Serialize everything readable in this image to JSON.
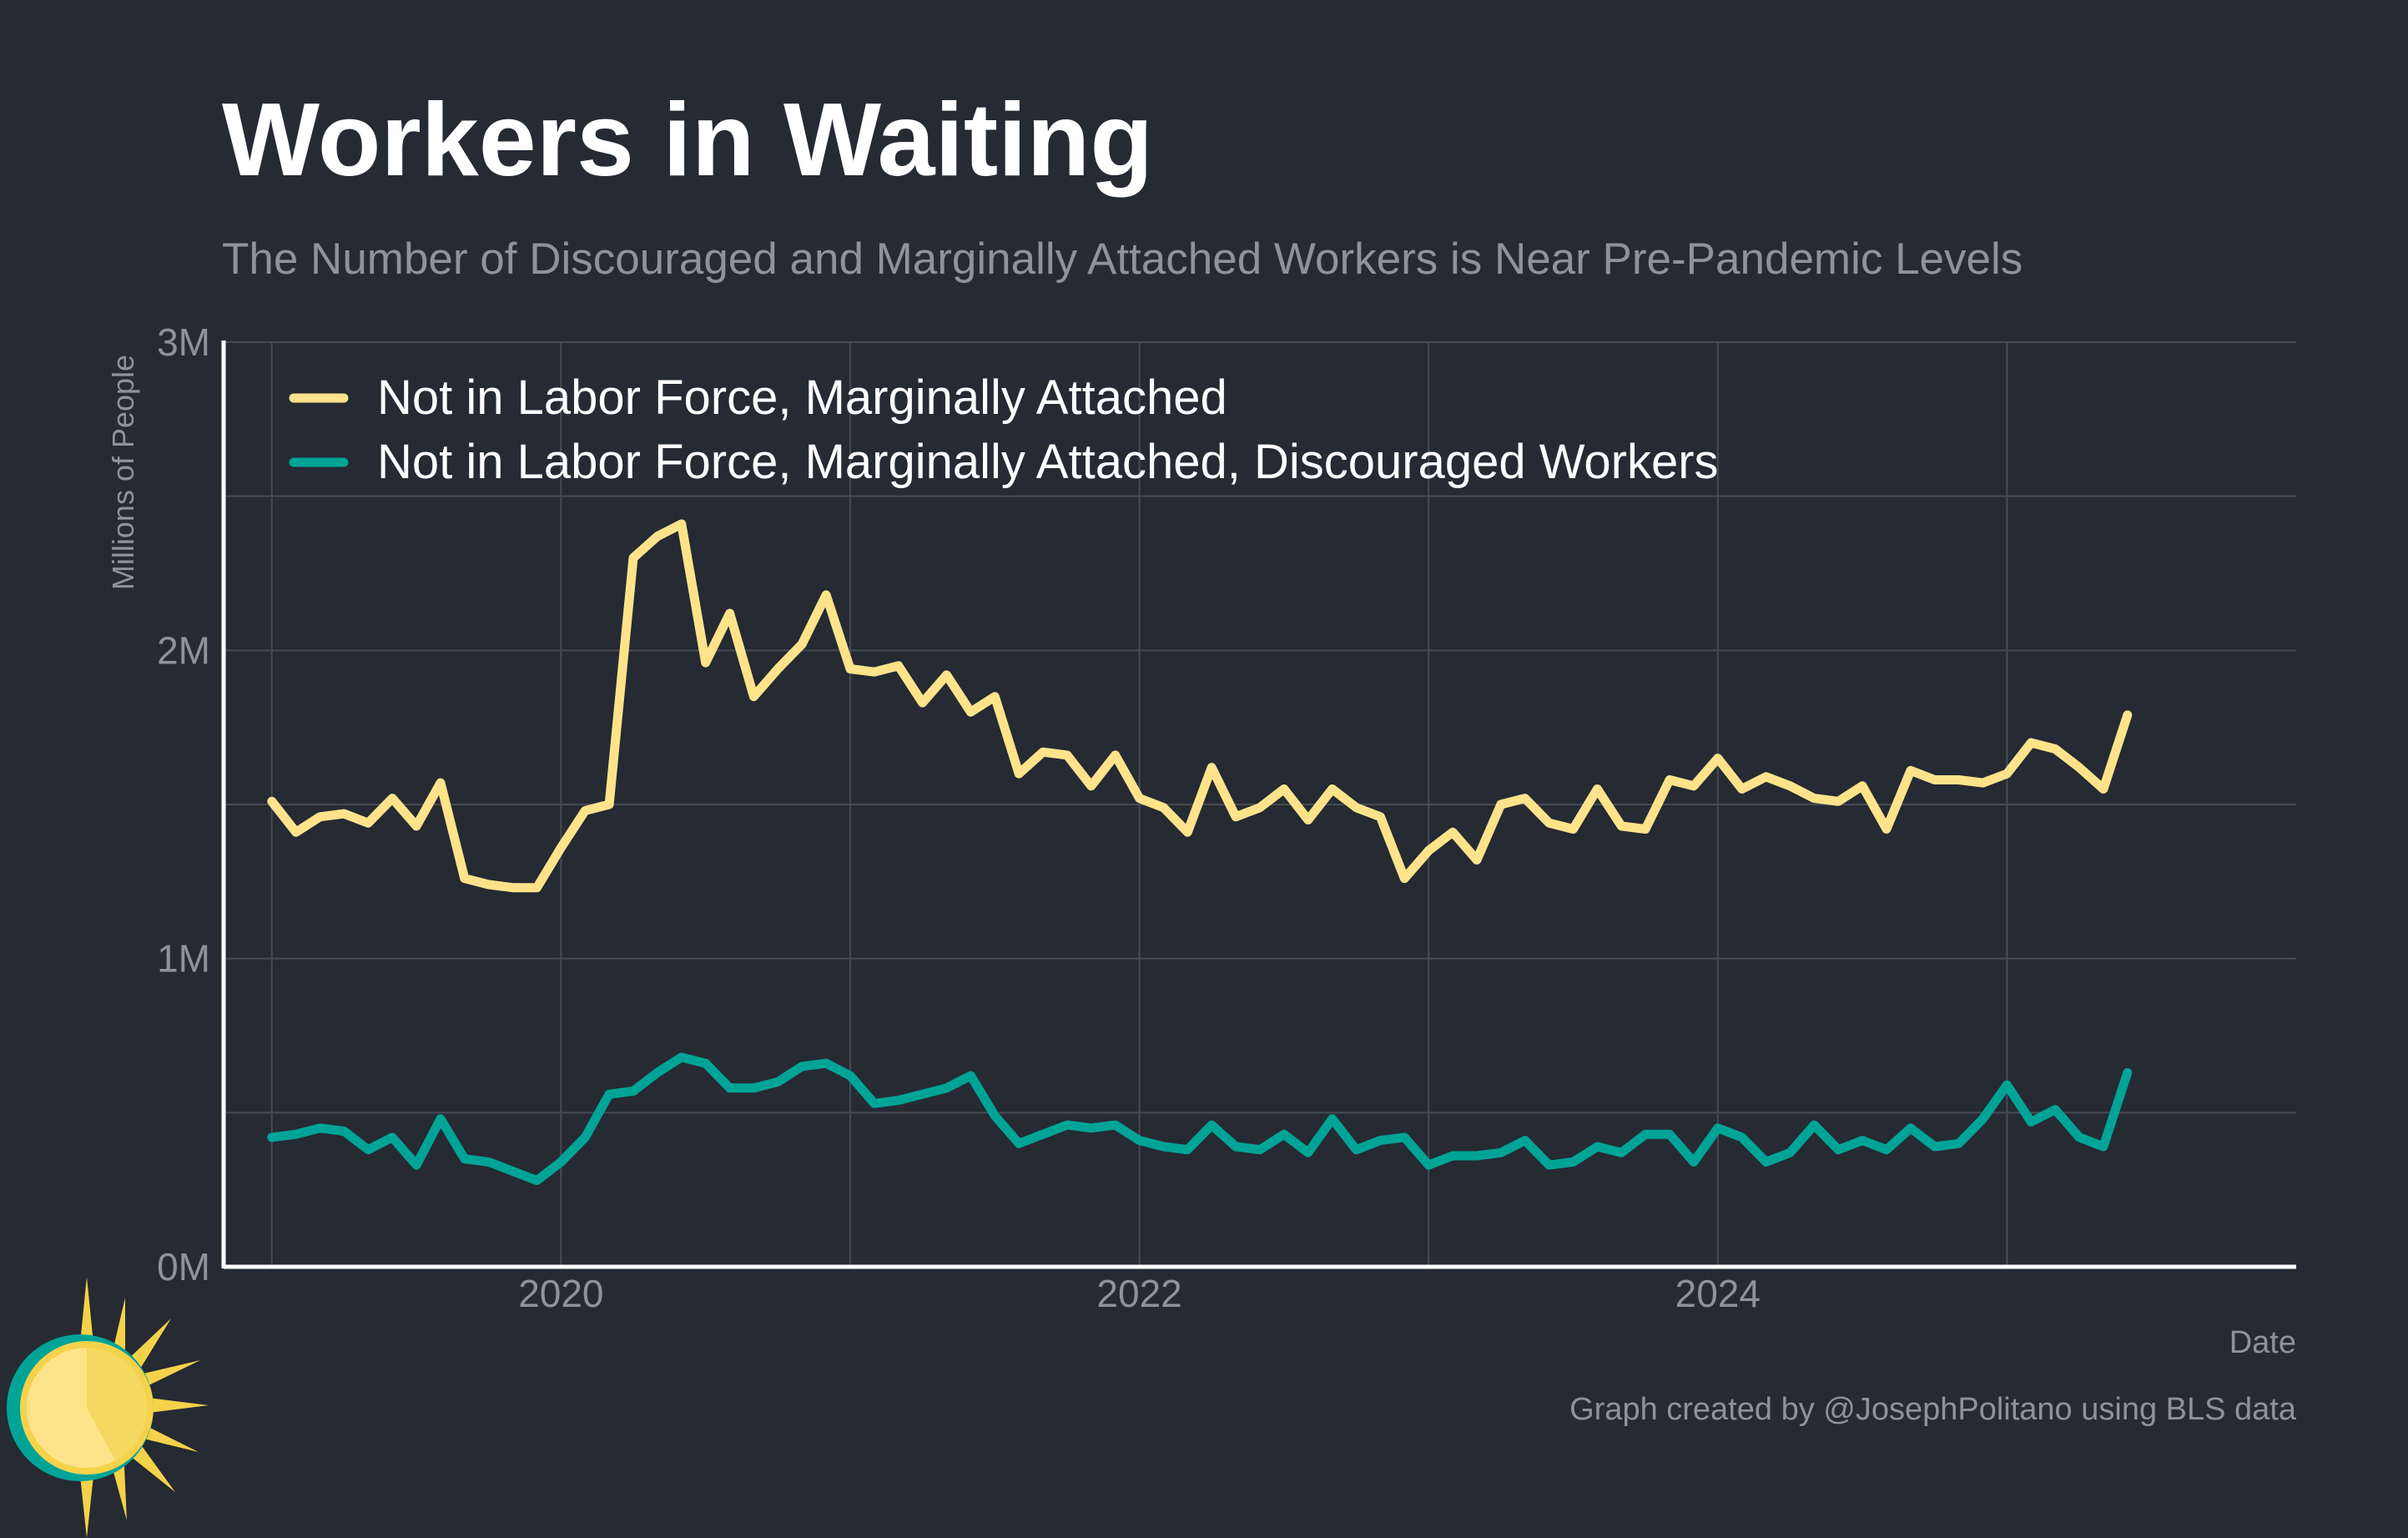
{
  "header": {
    "title": "Workers in Waiting",
    "subtitle": "The Number of Discouraged and Marginally Attached Workers is Near Pre-Pandemic Levels"
  },
  "footer": {
    "credit": "Graph created by @JosephPolitano using BLS data"
  },
  "colors": {
    "background": "#252a33",
    "grid": "#464b54",
    "axis": "#ffffff",
    "muted_text": "#8e939b",
    "yellow": "#ffe38a",
    "teal": "#00a497"
  },
  "logo": {
    "icon": "sun-logo-icon"
  },
  "chart_data": {
    "type": "line",
    "title": "Workers in Waiting",
    "xlabel": "Date",
    "ylabel": "Millions of People",
    "x_start": "2019-01",
    "x_frequency": "monthly",
    "xlim": [
      "2018-11",
      "2026-01"
    ],
    "ylim": [
      0,
      3
    ],
    "y_ticks": [
      {
        "value": 0,
        "label": "0M"
      },
      {
        "value": 1,
        "label": "1M"
      },
      {
        "value": 2,
        "label": "2M"
      },
      {
        "value": 3,
        "label": "3M"
      }
    ],
    "x_ticks": [
      {
        "value": "2020-01",
        "label": "2020"
      },
      {
        "value": "2022-01",
        "label": "2022"
      },
      {
        "value": "2024-01",
        "label": "2024"
      }
    ],
    "grid": true,
    "legend_position": "top-left",
    "series": [
      {
        "name": "Not in Labor Force, Marginally Attached",
        "color": "#ffe38a",
        "values": [
          1.51,
          1.41,
          1.46,
          1.47,
          1.44,
          1.52,
          1.43,
          1.57,
          1.26,
          1.24,
          1.23,
          1.23,
          1.36,
          1.48,
          1.5,
          2.3,
          2.37,
          2.41,
          1.96,
          2.12,
          1.85,
          1.94,
          2.02,
          2.18,
          1.94,
          1.93,
          1.95,
          1.83,
          1.92,
          1.8,
          1.85,
          1.6,
          1.67,
          1.66,
          1.56,
          1.66,
          1.52,
          1.49,
          1.41,
          1.62,
          1.46,
          1.49,
          1.55,
          1.45,
          1.55,
          1.49,
          1.46,
          1.26,
          1.35,
          1.41,
          1.32,
          1.5,
          1.52,
          1.44,
          1.42,
          1.55,
          1.43,
          1.42,
          1.58,
          1.56,
          1.65,
          1.55,
          1.59,
          1.56,
          1.52,
          1.51,
          1.56,
          1.42,
          1.61,
          1.58,
          1.58,
          1.57,
          1.6,
          1.7,
          1.68,
          1.62,
          1.55,
          1.79
        ]
      },
      {
        "name": "Not in Labor Force, Marginally Attached, Discouraged Workers",
        "color": "#00a497",
        "values": [
          0.42,
          0.43,
          0.45,
          0.44,
          0.38,
          0.42,
          0.33,
          0.48,
          0.35,
          0.34,
          0.31,
          0.28,
          0.34,
          0.42,
          0.56,
          0.57,
          0.63,
          0.68,
          0.66,
          0.58,
          0.58,
          0.6,
          0.65,
          0.66,
          0.62,
          0.53,
          0.54,
          0.56,
          0.58,
          0.62,
          0.49,
          0.4,
          0.43,
          0.46,
          0.45,
          0.46,
          0.41,
          0.39,
          0.38,
          0.46,
          0.39,
          0.38,
          0.43,
          0.37,
          0.48,
          0.38,
          0.41,
          0.42,
          0.33,
          0.36,
          0.36,
          0.37,
          0.41,
          0.33,
          0.34,
          0.39,
          0.37,
          0.43,
          0.43,
          0.34,
          0.45,
          0.42,
          0.34,
          0.37,
          0.46,
          0.38,
          0.41,
          0.38,
          0.45,
          0.39,
          0.4,
          0.48,
          0.59,
          0.47,
          0.51,
          0.42,
          0.39,
          0.63
        ]
      }
    ]
  }
}
